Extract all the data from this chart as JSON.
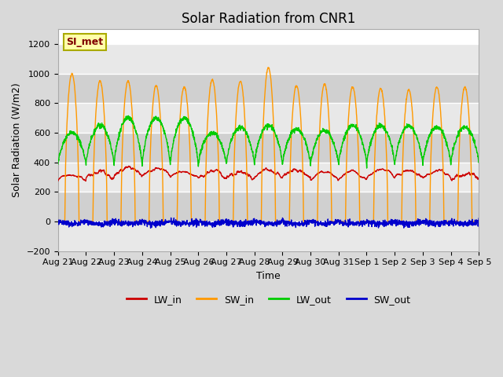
{
  "title": "Solar Radiation from CNR1",
  "xlabel": "Time",
  "ylabel": "Solar Radiation (W/m2)",
  "ylim": [
    -200,
    1300
  ],
  "yticks": [
    -200,
    0,
    200,
    400,
    600,
    800,
    1000,
    1200
  ],
  "x_labels": [
    "Aug 21",
    "Aug 22",
    "Aug 23",
    "Aug 24",
    "Aug 25",
    "Aug 26",
    "Aug 27",
    "Aug 28",
    "Aug 29",
    "Aug 30",
    "Aug 31",
    "Sep 1",
    "Sep 2",
    "Sep 3",
    "Sep 4",
    "Sep 5"
  ],
  "annotation_text": "SI_met",
  "colors": {
    "LW_in": "#cc0000",
    "SW_in": "#ff9900",
    "LW_out": "#00cc00",
    "SW_out": "#0000cc"
  },
  "background_color": "#d9d9d9",
  "axes_bg_color": "#ffffff",
  "grid_color": "#d9d9d9",
  "band_light": "#e8e8e8",
  "band_dark": "#d0d0d0",
  "title_fontsize": 12,
  "label_fontsize": 9,
  "tick_fontsize": 8,
  "legend_fontsize": 9,
  "n_days": 15,
  "points_per_day": 144,
  "sw_in_peaks": [
    1000,
    950,
    950,
    920,
    910,
    960,
    950,
    1040,
    920,
    930,
    910,
    900,
    890,
    910,
    910
  ],
  "lw_out_peaks": [
    600,
    650,
    700,
    700,
    700,
    600,
    640,
    650,
    625,
    615,
    650,
    650,
    645,
    640,
    640
  ],
  "lw_in_base": [
    275,
    295,
    305,
    310,
    300,
    295,
    290,
    295,
    300,
    280,
    285,
    295,
    300,
    295,
    285
  ],
  "lw_in_day_bump": [
    30,
    45,
    50,
    55,
    50,
    45,
    50,
    50,
    55,
    45,
    45,
    50,
    50,
    45,
    40
  ]
}
